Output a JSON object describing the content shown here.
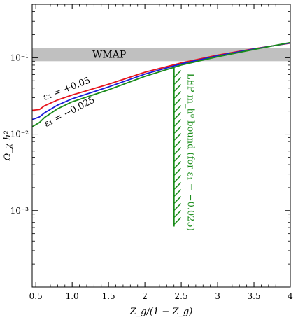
{
  "chart_data": {
    "type": "line",
    "xlabel": "Z_g/(1 − Z_g)",
    "ylabel": "Ω_χ h²",
    "xlim": [
      0.45,
      4.0
    ],
    "ylim": [
      0.0001,
      0.5
    ],
    "yscale": "log",
    "x_ticks": [
      0.5,
      1.0,
      1.5,
      2.0,
      2.5,
      3.0,
      3.5,
      4.0
    ],
    "x_tick_labels": [
      "0.5",
      "1.0",
      "1.5",
      "2",
      "2.5",
      "3",
      "3.5",
      "4"
    ],
    "y_ticks": [
      0.001,
      0.01,
      0.1
    ],
    "y_tick_labels": [
      "10⁻³",
      "10⁻²",
      "10⁻¹"
    ],
    "band": {
      "label": "WMAP",
      "y_range": [
        0.09,
        0.135
      ],
      "color": "#c0c0c0"
    },
    "series": [
      {
        "name": "ε₁ = +0.05",
        "color": "#e8141c",
        "x": [
          0.45,
          0.55,
          0.62,
          0.8,
          1.0,
          1.5,
          2.0,
          2.5,
          3.0,
          3.5,
          4.0
        ],
        "y": [
          0.0205,
          0.021,
          0.0235,
          0.028,
          0.0325,
          0.045,
          0.0645,
          0.0855,
          0.108,
          0.131,
          0.155
        ]
      },
      {
        "name": "",
        "color": "#1a1ad8",
        "x": [
          0.45,
          0.55,
          0.62,
          0.8,
          1.0,
          1.5,
          2.0,
          2.5,
          3.0,
          3.5,
          4.0
        ],
        "y": [
          0.0155,
          0.0168,
          0.019,
          0.024,
          0.029,
          0.0415,
          0.061,
          0.083,
          0.106,
          0.13,
          0.156
        ]
      },
      {
        "name": "ε₁ = −0.025",
        "color": "#1a8c1a",
        "x": [
          0.45,
          0.55,
          0.62,
          0.8,
          1.0,
          1.5,
          2.0,
          2.5,
          3.0,
          3.5,
          4.0
        ],
        "y": [
          0.0125,
          0.0142,
          0.0165,
          0.0215,
          0.0265,
          0.038,
          0.057,
          0.08,
          0.103,
          0.128,
          0.158
        ]
      }
    ],
    "bound": {
      "label": "LEP m_h⁰ bound (for ε₁ = −0.025)",
      "x": 2.4,
      "y_range": [
        0.00062,
        0.074
      ],
      "color": "#1a8c1a",
      "hatch": true
    }
  }
}
